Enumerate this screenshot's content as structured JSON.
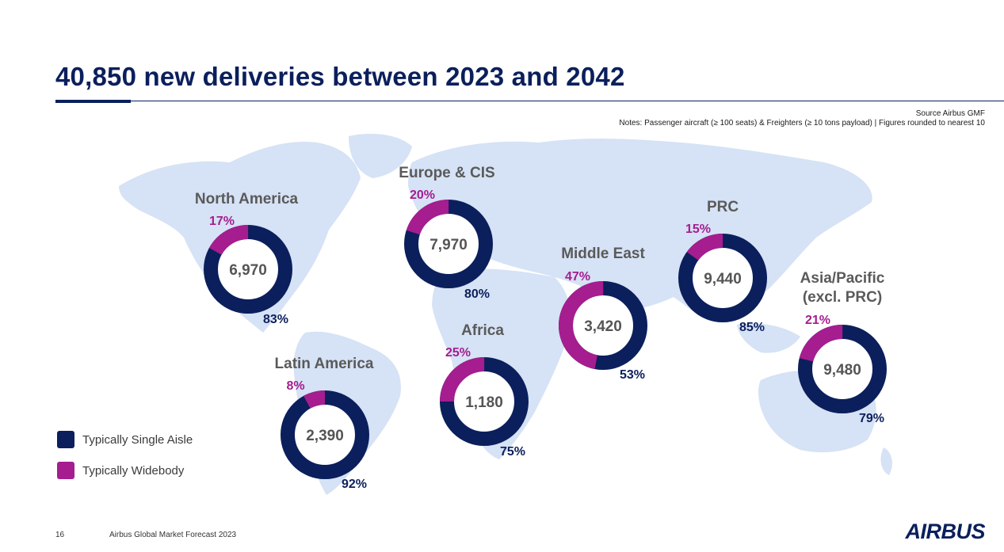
{
  "title": "40,850 new deliveries between 2023 and 2042",
  "source_note": "Source Airbus GMF",
  "notes": "Notes: Passenger aircraft (≥ 100 seats) & Freighters (≥ 10 tons payload) | Figures rounded to nearest 10",
  "colors": {
    "single_aisle": "#0b1f5c",
    "widebody": "#a51d8f",
    "map": "#d6e2f5",
    "region_label": "#5a5a5a"
  },
  "legend": [
    {
      "label": "Typically Single Aisle",
      "color": "#0b1f5c"
    },
    {
      "label": "Typically Widebody",
      "color": "#a51d8f"
    }
  ],
  "footer": {
    "page_number": "16",
    "text": "Airbus Global Market Forecast 2023",
    "logo": "AIRBUS"
  },
  "chart_data": {
    "type": "pie",
    "variant": "donut",
    "series": [
      {
        "region": "North America",
        "total": "6,970",
        "widebody_pct": 17,
        "single_aisle_pct": 83
      },
      {
        "region": "Europe & CIS",
        "total": "7,970",
        "widebody_pct": 20,
        "single_aisle_pct": 80
      },
      {
        "region": "Middle East",
        "total": "3,420",
        "widebody_pct": 47,
        "single_aisle_pct": 53
      },
      {
        "region": "PRC",
        "total": "9,440",
        "widebody_pct": 15,
        "single_aisle_pct": 85
      },
      {
        "region": "Asia/Pacific\n(excl. PRC)",
        "total": "9,480",
        "widebody_pct": 21,
        "single_aisle_pct": 79
      },
      {
        "region": "Latin America",
        "total": "2,390",
        "widebody_pct": 8,
        "single_aisle_pct": 92
      },
      {
        "region": "Africa",
        "total": "1,180",
        "widebody_pct": 25,
        "single_aisle_pct": 75
      }
    ]
  }
}
